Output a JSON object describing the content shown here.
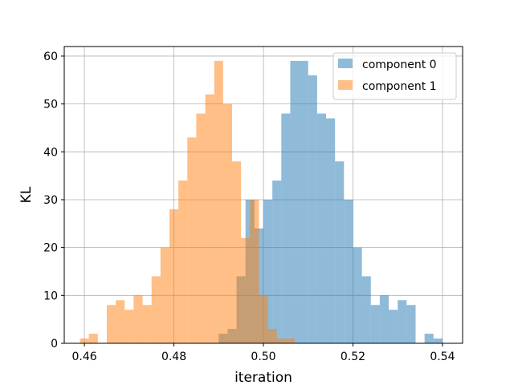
{
  "chart_data": {
    "type": "bar",
    "title": "",
    "xlabel": "iteration",
    "ylabel": "KL",
    "xlim": [
      0.4555,
      0.5445
    ],
    "ylim": [
      0,
      62
    ],
    "grid": true,
    "legend_position": "top-right",
    "x_ticks": [
      0.46,
      0.48,
      0.5,
      0.52,
      0.54
    ],
    "x_tick_labels": [
      "0.46",
      "0.48",
      "0.50",
      "0.52",
      "0.54"
    ],
    "y_ticks": [
      0,
      10,
      20,
      30,
      40,
      50,
      60
    ],
    "y_tick_labels": [
      "0",
      "10",
      "20",
      "30",
      "40",
      "50",
      "60"
    ],
    "alpha": 0.5,
    "series": [
      {
        "name": "component 0",
        "color": "#1f77b4",
        "bin_start": 0.49,
        "bin_width": 0.002,
        "counts": [
          2,
          3,
          14,
          30,
          24,
          30,
          34,
          48,
          59,
          59,
          56,
          48,
          47,
          38,
          30,
          20,
          14,
          8,
          10,
          7,
          9,
          8,
          0,
          2,
          1
        ]
      },
      {
        "name": "component 1",
        "color": "#ff7f0e",
        "bin_start": 0.459,
        "bin_width": 0.002,
        "counts": [
          1,
          2,
          0,
          8,
          9,
          7,
          10,
          8,
          14,
          20,
          28,
          34,
          43,
          48,
          52,
          59,
          50,
          38,
          22,
          30,
          10,
          3,
          1,
          1
        ]
      }
    ]
  }
}
